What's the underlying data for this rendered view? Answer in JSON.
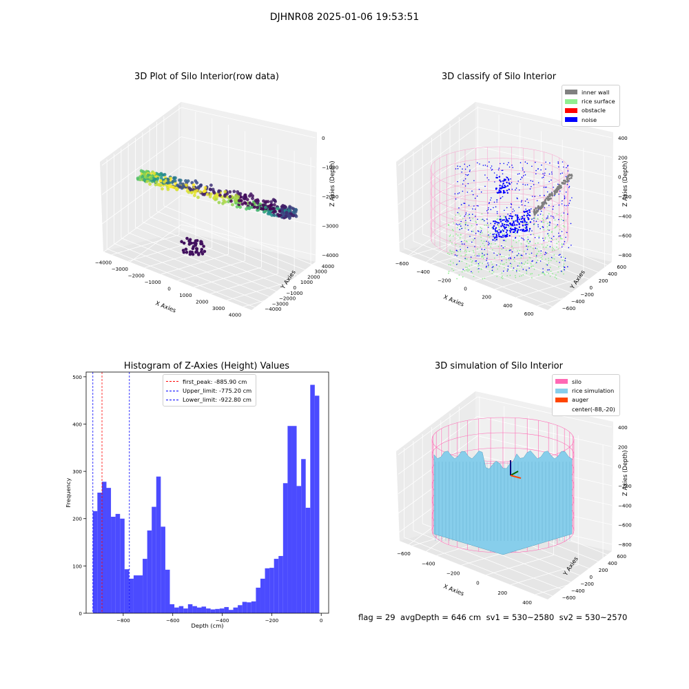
{
  "figure": {
    "suptitle": "DJHNR08 2025-01-06 19:53:51",
    "footer": {
      "flag": "flag = 29",
      "avg": "avgDepth = 646 cm",
      "sv1": "sv1 = 530~2580",
      "sv2": "sv2 = 530~2570"
    }
  },
  "colors": {
    "hist_bar": "#4b4bff",
    "first_peak_line": "#ff0000",
    "limit_line": "#0000ff",
    "inner_wall": "#808080",
    "rice_surface": "#90ee90",
    "obstacle": "#ff0000",
    "noise": "#0000ff",
    "silo": "#ff69b4",
    "rice_simulation": "#87ceeb",
    "auger": "#ff4500"
  },
  "chart_data": [
    {
      "type": "scatter",
      "title": "3D Plot of Silo Interior(row data)",
      "xlabel": "X Axies",
      "ylabel": "Y Axies",
      "zlabel": "Z Axies (Depth)",
      "xticks": [
        "−4000",
        "−3000",
        "−2000",
        "−1000",
        "0",
        "1000",
        "2000",
        "3000",
        "4000"
      ],
      "yticks": [
        "−4000",
        "−3000",
        "−2000",
        "−1000",
        "0",
        "1000",
        "2000",
        "3000",
        "4000"
      ],
      "zticks": [
        "0",
        "−1000",
        "−2000",
        "−3000",
        "−4000"
      ],
      "xlim": [
        -4000,
        4000
      ],
      "ylim": [
        -4000,
        4000
      ],
      "zlim": [
        -4500,
        0
      ],
      "colormap": "viridis"
    },
    {
      "type": "scatter",
      "title": "3D classify of Silo Interior",
      "xlabel": "X Axies",
      "ylabel": "Y Axies",
      "zlabel": "Z Axies (Depth)",
      "xticks": [
        "−600",
        "−400",
        "−200",
        "0",
        "200",
        "400",
        "600"
      ],
      "yticks": [
        "−600",
        "−400",
        "−200",
        "0",
        "200",
        "400",
        "600"
      ],
      "zticks": [
        "400",
        "200",
        "0",
        "−200",
        "−400",
        "−600",
        "−800"
      ],
      "legend": [
        "inner wall",
        "rice surface",
        "obstacle",
        "noise"
      ],
      "legend_position": "top-right"
    },
    {
      "type": "bar",
      "title": "Histogram of Z-Axies (Height) Values",
      "xlabel": "Depth (cm)",
      "ylabel": "Frequency",
      "xlim": [
        -950,
        30
      ],
      "ylim": [
        0,
        510
      ],
      "xticks": [
        -800,
        -600,
        -400,
        -200,
        0
      ],
      "yticks": [
        0,
        100,
        200,
        300,
        400,
        500
      ],
      "xtick_labels": [
        "−800",
        "−600",
        "−400",
        "−200",
        "0"
      ],
      "bin_start": -922.8,
      "bin_width": 18.3,
      "values": [
        216,
        255,
        278,
        265,
        204,
        210,
        200,
        93,
        73,
        80,
        80,
        115,
        175,
        225,
        289,
        183,
        92,
        19,
        12,
        15,
        10,
        19,
        15,
        12,
        14,
        10,
        8,
        9,
        10,
        13,
        7,
        12,
        17,
        24,
        23,
        25,
        54,
        73,
        95,
        96,
        115,
        121,
        275,
        396,
        396,
        269,
        326,
        223,
        483,
        460
      ],
      "vlines": [
        {
          "label": "first_peak: -885.90 cm",
          "x": -885.9,
          "color": "#ff0000"
        },
        {
          "label": "Upper_limit: -775.20 cm",
          "x": -775.2,
          "color": "#0000ff"
        },
        {
          "label": "Lower_limit: -922.80 cm",
          "x": -922.8,
          "color": "#0000ff"
        }
      ],
      "legend_position": "top-center"
    },
    {
      "type": "area",
      "title": "3D simulation of Silo Interior",
      "xlabel": "X Axies",
      "ylabel": "Y Axies",
      "zlabel": "Z Axies (Depth)",
      "xticks": [
        "−600",
        "−400",
        "−200",
        "0",
        "200",
        "400"
      ],
      "yticks": [
        "−600",
        "−400",
        "−200",
        "0",
        "200",
        "400",
        "600"
      ],
      "zticks": [
        "400",
        "200",
        "0",
        "−200",
        "−400",
        "−600",
        "−800"
      ],
      "legend": [
        "silo",
        "rice simulation",
        "auger",
        "center(-88,-20)"
      ],
      "legend_position": "top-right"
    }
  ]
}
